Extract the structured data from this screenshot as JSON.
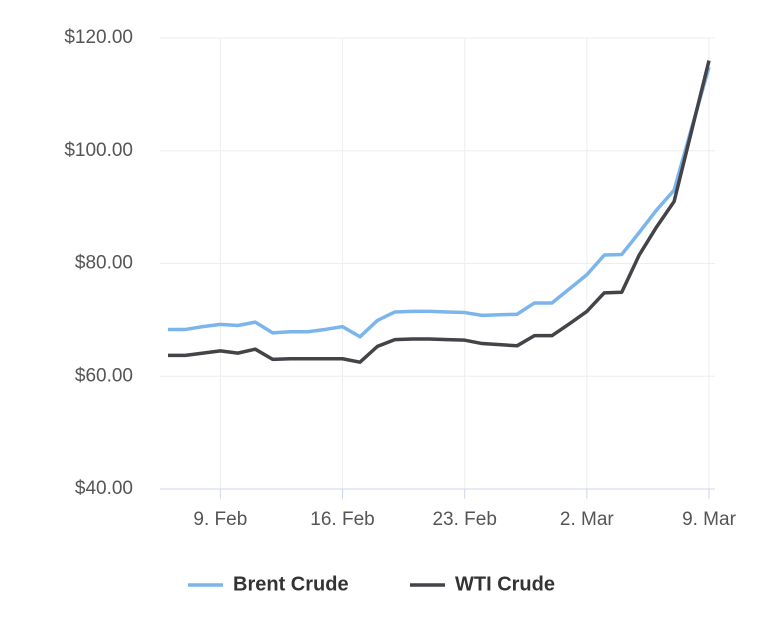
{
  "chart_data": {
    "type": "line",
    "x": [
      "02-06",
      "02-07",
      "02-08",
      "02-09",
      "02-10",
      "02-11",
      "02-12",
      "02-13",
      "02-14",
      "02-15",
      "02-16",
      "02-17",
      "02-18",
      "02-19",
      "02-20",
      "02-21",
      "02-22",
      "02-23",
      "02-24",
      "02-25",
      "02-26",
      "02-27",
      "02-28",
      "03-01",
      "03-02",
      "03-03",
      "03-04",
      "03-05",
      "03-06",
      "03-07",
      "03-08",
      "03-09"
    ],
    "series": [
      {
        "name": "Brent Crude",
        "color": "#7cb5ec",
        "values": [
          68.3,
          68.3,
          68.8,
          69.2,
          69.0,
          69.6,
          67.7,
          67.9,
          67.9,
          68.3,
          68.8,
          67.0,
          69.9,
          71.4,
          71.5,
          71.5,
          71.4,
          71.3,
          70.8,
          70.9,
          71.0,
          73.0,
          73.0,
          75.5,
          78.0,
          81.5,
          81.6,
          85.5,
          89.5,
          93.0,
          104.0,
          114.8
        ]
      },
      {
        "name": "WTI Crude",
        "color": "#434348",
        "values": [
          63.7,
          63.7,
          64.1,
          64.5,
          64.1,
          64.8,
          63.0,
          63.1,
          63.1,
          63.1,
          63.1,
          62.5,
          65.3,
          66.5,
          66.6,
          66.6,
          66.5,
          66.4,
          65.8,
          65.6,
          65.4,
          67.2,
          67.2,
          69.3,
          71.5,
          74.8,
          74.9,
          81.5,
          86.5,
          91.0,
          103.5,
          116.0
        ]
      }
    ],
    "xlim": [
      "02-06",
      "03-09"
    ],
    "xticks": [
      {
        "value": "02-09",
        "label": "9. Feb"
      },
      {
        "value": "02-16",
        "label": "16. Feb"
      },
      {
        "value": "02-23",
        "label": "23. Feb"
      },
      {
        "value": "03-02",
        "label": "2. Mar"
      },
      {
        "value": "03-09",
        "label": "9. Mar"
      }
    ],
    "ylim": [
      40,
      120
    ],
    "yticks": [
      {
        "value": 40,
        "label": "$40.00"
      },
      {
        "value": 60,
        "label": "$60.00"
      },
      {
        "value": 80,
        "label": "$80.00"
      },
      {
        "value": 100,
        "label": "$100.00"
      },
      {
        "value": 120,
        "label": "$120.00"
      }
    ],
    "grid": true
  }
}
